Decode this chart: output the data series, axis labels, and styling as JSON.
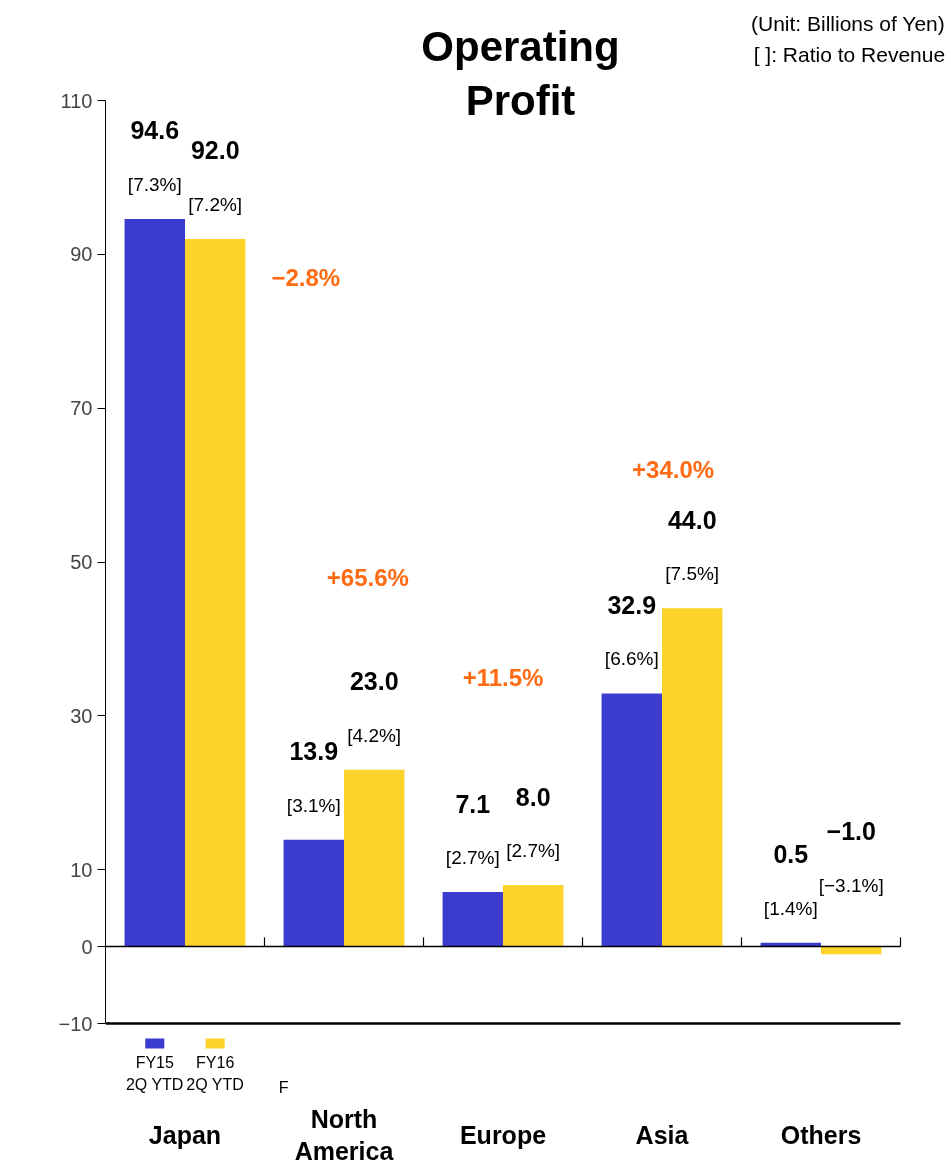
{
  "chart_data": {
    "type": "bar",
    "title": "Operating\nProfit",
    "categories": [
      "Japan",
      "North\nAmerica",
      "Europe",
      "Asia",
      "Others"
    ],
    "series": [
      {
        "name": "FY15\n2Q YTD",
        "color": "#3b3bd0",
        "values": [
          94.6,
          13.9,
          7.1,
          32.9,
          0.5
        ],
        "value_labels": [
          "94.6\n[7.3%]",
          "13.9\n[3.1%]",
          "7.1\n[2.7%]",
          "32.9\n[6.6%]",
          "0.5\n[1.4%]"
        ]
      },
      {
        "name": "FY16\n2Q YTD",
        "color": "#ffd42a",
        "values": [
          92.0,
          23.0,
          8.0,
          44.0,
          -1.0
        ],
        "value_labels": [
          "92.0\n[7.2%]",
          "23.0\n[4.2%]",
          "8.0\n[2.7%]",
          "44.0\n[7.5%]",
          "−1.0\n[−3.1%]"
        ]
      }
    ],
    "ylim": [
      -10,
      110
    ],
    "yticks": [
      -10,
      0,
      10,
      30,
      50,
      70,
      90,
      110
    ],
    "legend": "bottom left",
    "annotations": [
      "(Unit: Billions of Yen)",
      "[ ]: Ratio to Revenue",
      "F",
      "−2.8%",
      "+65.6%",
      "+11.5%",
      "+34.0%"
    ]
  }
}
